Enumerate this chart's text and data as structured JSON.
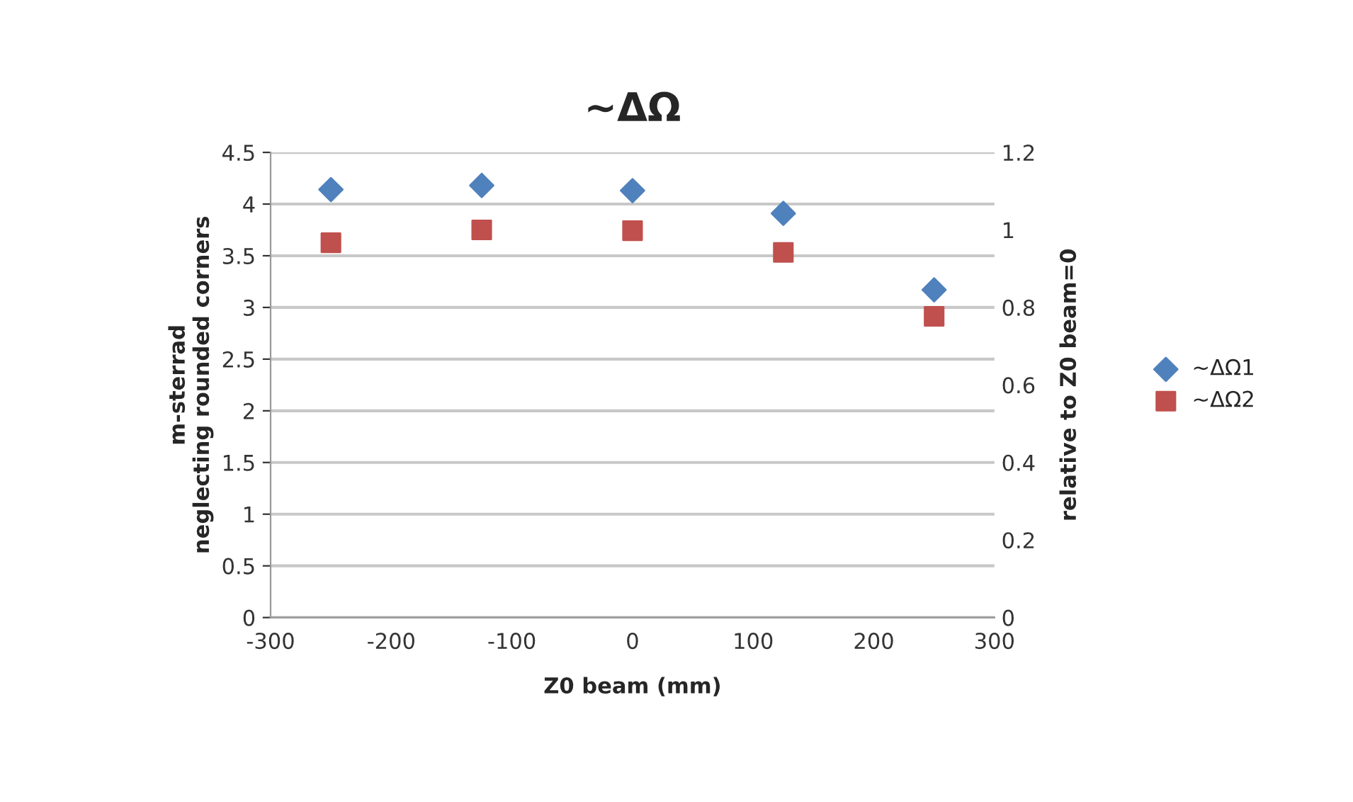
{
  "chart_data": {
    "type": "scatter",
    "title": "~ΔΩ",
    "xlabel": "Z0 beam (mm)",
    "ylabel": "m-sterrad\nneglecting rounded corners",
    "y2label": "relative to Z0 beam=0",
    "x": [
      -250,
      -125,
      0,
      125,
      250
    ],
    "series": [
      {
        "name": "~ΔΩ1",
        "color": "#4f81bd",
        "marker": "diamond",
        "values": [
          4.14,
          4.18,
          4.13,
          3.91,
          3.17
        ]
      },
      {
        "name": "~ΔΩ2",
        "color": "#c0504d",
        "marker": "square",
        "axis": "y2",
        "values": [
          0.967,
          1.0,
          0.998,
          0.942,
          0.777
        ]
      }
    ],
    "xlim": [
      -300,
      300
    ],
    "xticks": [
      -300,
      -200,
      -100,
      0,
      100,
      200,
      300
    ],
    "ylim": [
      0,
      4.5
    ],
    "yticks": [
      0,
      0.5,
      1,
      1.5,
      2,
      2.5,
      3,
      3.5,
      4,
      4.5
    ],
    "y2lim": [
      0,
      1.2
    ],
    "y2ticks": [
      0,
      0.2,
      0.4,
      0.6,
      0.8,
      1,
      1.2
    ],
    "grid": "y",
    "legend": "right"
  }
}
